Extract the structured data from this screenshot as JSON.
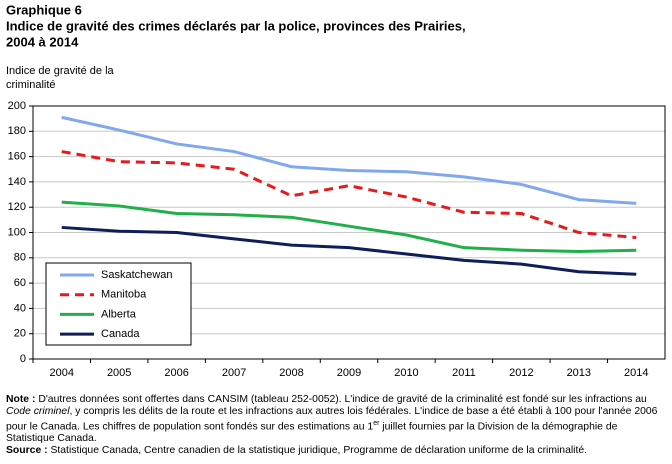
{
  "chart_data": {
    "type": "line",
    "label": "Graphique 6",
    "title": "Indice de gravité des crimes déclarés par la police, provinces des Prairies,",
    "title_line2": "2004 à 2014",
    "y_label": [
      "Indice de gravité de la",
      "criminalité"
    ],
    "categories": [
      "2004",
      "2005",
      "2006",
      "2007",
      "2008",
      "2009",
      "2010",
      "2011",
      "2012",
      "2013",
      "2014"
    ],
    "series": [
      {
        "name": "Saskatchewan",
        "color": "#80a8ec",
        "dash": "none",
        "values": [
          191,
          181,
          170,
          164,
          152,
          149,
          148,
          144,
          138,
          126,
          123
        ]
      },
      {
        "name": "Manitoba",
        "color": "#e8191a",
        "dash": "9,6",
        "values": [
          164,
          156,
          155,
          150,
          129,
          137,
          128,
          116,
          115,
          100,
          96
        ]
      },
      {
        "name": "Alberta",
        "color": "#1fb04a",
        "dash": "none",
        "values": [
          124,
          121,
          115,
          114,
          112,
          105,
          98,
          88,
          86,
          85,
          86
        ]
      },
      {
        "name": "Canada",
        "color": "#0d1e5a",
        "dash": "none",
        "values": [
          104,
          101,
          100,
          95,
          90,
          88,
          83,
          78,
          75,
          69,
          67
        ]
      }
    ],
    "ylim": [
      0,
      200
    ],
    "yticks": [
      0,
      20,
      40,
      60,
      80,
      100,
      120,
      140,
      160,
      180,
      200
    ],
    "grid": true,
    "note": {
      "label": "Note :",
      "parts": [
        " D'autres  données sont offertes dans CANSIM  (tableau 252-0052).  L'indice de gravité de la criminalité est fondé sur les infractions au ",
        "Code criminel",
        ", y compris les délits de la route et les infractions aux autres lois fédérales. L'indice de base a été établi à 100 pour l'année 2006  pour le Canada. Les chiffres de population sont fondés sur des estimations au 1",
        "er",
        " juillet fournies par la Division de la démographie de Statistique Canada."
      ]
    },
    "source": {
      "label": "Source :",
      "text": " Statistique Canada, Centre canadien de la statistique juridique, Programme de déclaration uniforme de la criminalité."
    }
  }
}
